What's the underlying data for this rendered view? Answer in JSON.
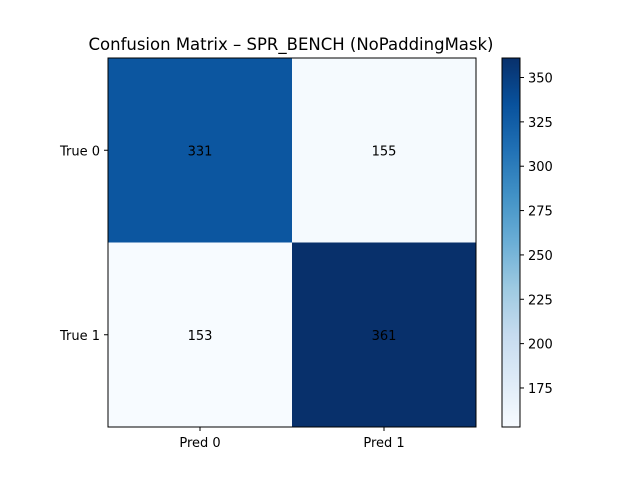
{
  "chart_data": {
    "type": "heatmap",
    "title": "Confusion Matrix – SPR_BENCH (NoPaddingMask)",
    "x_categories": [
      "Pred 0",
      "Pred 1"
    ],
    "y_categories": [
      "True 0",
      "True 1"
    ],
    "values": [
      [
        331,
        155
      ],
      [
        153,
        361
      ]
    ],
    "colormap": "Blues",
    "colorbar": {
      "range": [
        153,
        361
      ],
      "ticks": [
        175,
        200,
        225,
        250,
        275,
        300,
        325,
        350
      ],
      "tick_labels": [
        "175",
        "200",
        "225",
        "250",
        "275",
        "300",
        "325",
        "350"
      ]
    },
    "colors": {
      "low": "#f7fbff",
      "high": "#08306b"
    }
  }
}
